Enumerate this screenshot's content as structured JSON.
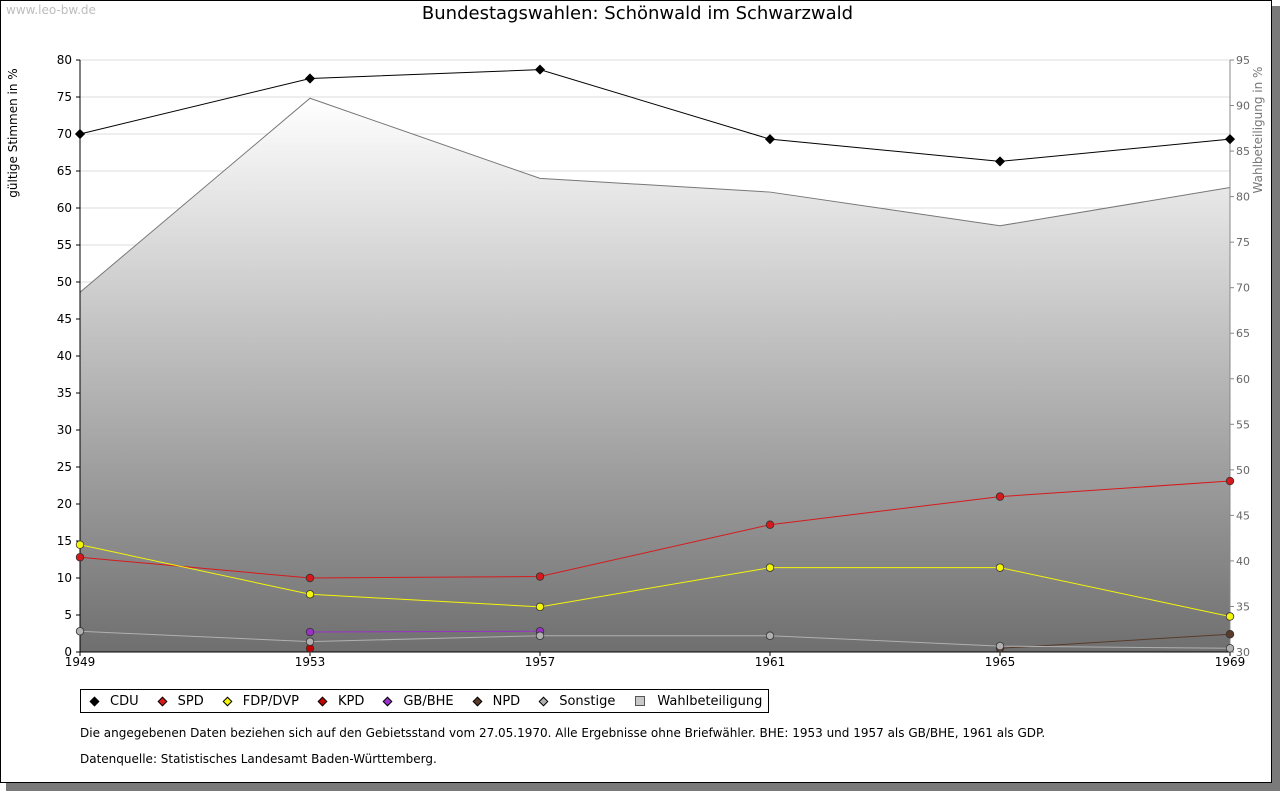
{
  "watermark": "www.leo-bw.de",
  "chart_data": {
    "type": "line",
    "title": "Bundestagswahlen: Schönwald im Schwarzwald",
    "xlabel": "",
    "ylabel": "gültige Stimmen in %",
    "ylabel_right": "Wahlbeteiligung in %",
    "categories": [
      "1949",
      "1953",
      "1957",
      "1961",
      "1965",
      "1969"
    ],
    "ylim": [
      0,
      80
    ],
    "ylim_right": [
      30,
      95
    ],
    "yticks": [
      "0",
      "5",
      "10",
      "15",
      "20",
      "25",
      "30",
      "35",
      "40",
      "45",
      "50",
      "55",
      "60",
      "65",
      "70",
      "75",
      "80"
    ],
    "yticks_right": [
      "30",
      "35",
      "40",
      "45",
      "50",
      "55",
      "60",
      "65",
      "70",
      "75",
      "80",
      "85",
      "90",
      "95"
    ],
    "series": [
      {
        "name": "CDU",
        "color": "#000000",
        "values": [
          70.0,
          77.5,
          78.7,
          69.3,
          66.3,
          69.3
        ]
      },
      {
        "name": "SPD",
        "color": "#d7191c",
        "values": [
          12.8,
          10.0,
          10.2,
          17.2,
          21.0,
          23.1
        ]
      },
      {
        "name": "FDP/DVP",
        "color": "#f5f50a",
        "values": [
          14.5,
          7.8,
          6.1,
          11.4,
          11.4,
          4.8
        ]
      },
      {
        "name": "KPD",
        "color": "#c00000",
        "values": [
          null,
          0.5,
          null,
          null,
          null,
          null
        ]
      },
      {
        "name": "GB/BHE",
        "color": "#9b30c8",
        "values": [
          null,
          2.7,
          2.8,
          null,
          null,
          null
        ]
      },
      {
        "name": "NPD",
        "color": "#5a3a2a",
        "values": [
          null,
          null,
          null,
          null,
          0.5,
          2.4
        ]
      },
      {
        "name": "Sonstige",
        "color": "#b0b0b0",
        "values": [
          2.8,
          1.4,
          2.2,
          2.2,
          0.8,
          0.5
        ]
      }
    ],
    "area_series": {
      "name": "Wahlbeteiligung",
      "color": "#888888",
      "axis": "right",
      "values": [
        69.5,
        90.8,
        82.0,
        80.5,
        76.8,
        81.0
      ]
    },
    "grid": true
  },
  "legend": [
    {
      "label": "CDU",
      "color": "#000000",
      "shape": "diamond"
    },
    {
      "label": "SPD",
      "color": "#d7191c",
      "shape": "diamond"
    },
    {
      "label": "FDP/DVP",
      "color": "#f5f50a",
      "shape": "diamond"
    },
    {
      "label": "KPD",
      "color": "#c00000",
      "shape": "diamond"
    },
    {
      "label": "GB/BHE",
      "color": "#9b30c8",
      "shape": "diamond"
    },
    {
      "label": "NPD",
      "color": "#5a3a2a",
      "shape": "diamond"
    },
    {
      "label": "Sonstige",
      "color": "#b0b0b0",
      "shape": "diamond"
    },
    {
      "label": "Wahlbeteiligung",
      "color": "#c8c8c8",
      "shape": "square"
    }
  ],
  "notes": {
    "note1": "Die angegebenen Daten beziehen sich auf den Gebietsstand vom 27.05.1970. Alle Ergebnisse ohne Briefwähler. BHE: 1953 und 1957 als GB/BHE, 1961 als GDP.",
    "note2": "Datenquelle: Statistisches Landesamt Baden-Württemberg."
  }
}
